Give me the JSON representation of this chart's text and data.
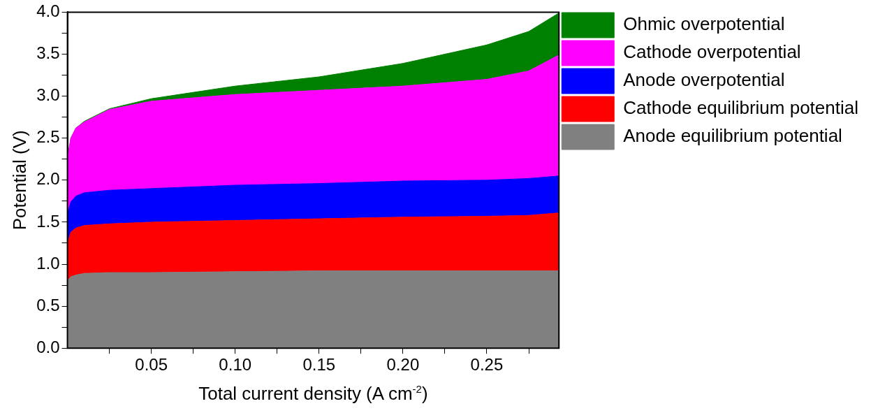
{
  "chart_data": {
    "type": "area",
    "stacked": true,
    "xlabel": "Total current density (A cm$^{-2}$)",
    "ylabel": "Potential (V)",
    "legend": "top right",
    "grid": false,
    "x": [
      0,
      0.002,
      0.005,
      0.01,
      0.025,
      0.05,
      0.1,
      0.15,
      0.2,
      0.25,
      0.275,
      0.293
    ],
    "series": [
      {
        "name": "Anode equilibrium potential",
        "color": "#808080",
        "values": [
          0.8,
          0.85,
          0.87,
          0.89,
          0.9,
          0.9,
          0.91,
          0.92,
          0.92,
          0.92,
          0.92,
          0.92
        ]
      },
      {
        "name": "Cathode equilibrium potential",
        "color": "#ff0000",
        "values": [
          0.45,
          0.53,
          0.56,
          0.57,
          0.58,
          0.6,
          0.61,
          0.62,
          0.64,
          0.65,
          0.66,
          0.69
        ]
      },
      {
        "name": "Anode overpotential",
        "color": "#0000ff",
        "values": [
          0.35,
          0.36,
          0.38,
          0.39,
          0.4,
          0.4,
          0.42,
          0.42,
          0.43,
          0.43,
          0.44,
          0.44
        ]
      },
      {
        "name": "Cathode overpotential",
        "color": "#ff00ff",
        "values": [
          0.66,
          0.76,
          0.81,
          0.84,
          0.96,
          1.04,
          1.08,
          1.11,
          1.13,
          1.2,
          1.28,
          1.44
        ]
      },
      {
        "name": "Ohmic overpotential",
        "color": "#008000",
        "values": [
          0,
          0,
          0,
          0.01,
          0.01,
          0.03,
          0.1,
          0.16,
          0.27,
          0.41,
          0.47,
          0.5
        ]
      }
    ],
    "xlim": [
      0,
      0.293
    ],
    "xticks": [
      {
        "value": 0.025,
        "label": null
      },
      {
        "value": 0.05,
        "label": "0.05"
      },
      {
        "value": 0.075,
        "label": null
      },
      {
        "value": 0.1,
        "label": "0.10"
      },
      {
        "value": 0.125,
        "label": null
      },
      {
        "value": 0.15,
        "label": "0.15"
      },
      {
        "value": 0.175,
        "label": null
      },
      {
        "value": 0.2,
        "label": "0.20"
      },
      {
        "value": 0.225,
        "label": null
      },
      {
        "value": 0.25,
        "label": "0.25"
      },
      {
        "value": 0.275,
        "label": null
      }
    ],
    "ylim": [
      0,
      4.0
    ],
    "yticks": [
      {
        "value": 0,
        "label": "0.0"
      },
      {
        "value": 0.25,
        "label": null
      },
      {
        "value": 0.5,
        "label": "0.5"
      },
      {
        "value": 0.75,
        "label": null
      },
      {
        "value": 1,
        "label": "1.0"
      },
      {
        "value": 1.25,
        "label": null
      },
      {
        "value": 1.5,
        "label": "1.5"
      },
      {
        "value": 1.75,
        "label": null
      },
      {
        "value": 2,
        "label": "2.0"
      },
      {
        "value": 2.25,
        "label": null
      },
      {
        "value": 2.5,
        "label": "2.5"
      },
      {
        "value": 2.75,
        "label": null
      },
      {
        "value": 3,
        "label": "3.0"
      },
      {
        "value": 3.25,
        "label": null
      },
      {
        "value": 3.5,
        "label": "3.5"
      },
      {
        "value": 3.75,
        "label": null
      },
      {
        "value": 4,
        "label": "4.0"
      }
    ]
  }
}
